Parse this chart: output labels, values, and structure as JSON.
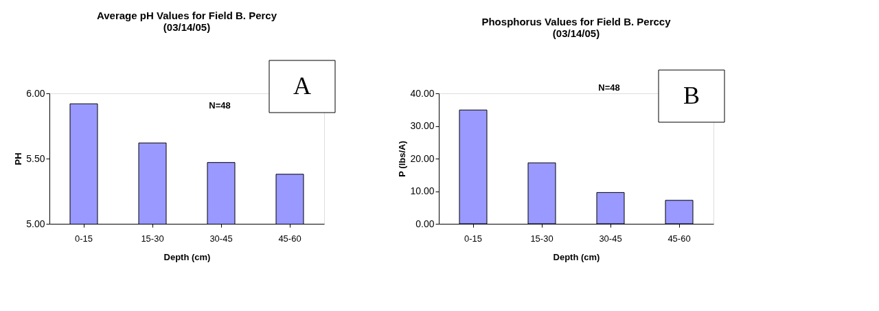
{
  "chart_data": [
    {
      "type": "bar",
      "title": "Average pH Values for Field B. Percy (03/14/05)",
      "xlabel": "Depth (cm)",
      "ylabel": "PH",
      "categories": [
        "0-15",
        "15-30",
        "30-45",
        "45-60"
      ],
      "values": [
        5.92,
        5.62,
        5.47,
        5.38
      ],
      "color": "#9999ff",
      "ylim": [
        5.0,
        6.0
      ],
      "yticks": [
        {
          "value": 5.0,
          "label": "5.00"
        },
        {
          "value": 5.5,
          "label": "5.50"
        },
        {
          "value": 6.0,
          "label": "6.00"
        }
      ],
      "grid": false,
      "annotations": [
        "N=48",
        "A"
      ]
    },
    {
      "type": "bar",
      "title": "Phosphorus Values for Field B. Perccy (03/14/05)",
      "xlabel": "Depth (cm)",
      "ylabel": "P (lbs/A)",
      "categories": [
        "0-15",
        "15-30",
        "30-45",
        "45-60"
      ],
      "values": [
        34.9,
        18.7,
        9.6,
        7.2
      ],
      "color": "#9999ff",
      "ylim": [
        0,
        40
      ],
      "yticks": [
        {
          "value": 0,
          "label": "0.00"
        },
        {
          "value": 10,
          "label": "10.00"
        },
        {
          "value": 20,
          "label": "20.00"
        },
        {
          "value": 30,
          "label": "30.00"
        },
        {
          "value": 40,
          "label": "40.00"
        }
      ],
      "grid": false,
      "annotations": [
        "N=48",
        "B"
      ]
    }
  ]
}
